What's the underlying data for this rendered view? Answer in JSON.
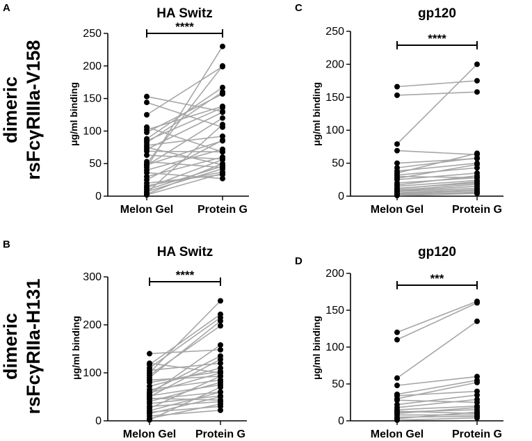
{
  "row_labels": [
    {
      "line1": "dimeric",
      "line2": "rsFcγRIIIa-V158"
    },
    {
      "line1": "dimeric",
      "line2": "rsFcγRIIa-H131"
    }
  ],
  "colors": {
    "line": "#a6a6a6",
    "point": "#000000",
    "axis": "#000000"
  },
  "chart_data": [
    {
      "type": "scatter",
      "panel": "A",
      "title": "HA Switz",
      "ylabel": "μg/ml binding",
      "categories": [
        "Melon Gel",
        "Protein G"
      ],
      "ylim": [
        0,
        250
      ],
      "yticks": [
        0,
        50,
        100,
        150,
        200,
        250
      ],
      "significance": "****",
      "pairs": [
        [
          153,
          130
        ],
        [
          144,
          106
        ],
        [
          125,
          199
        ],
        [
          106,
          68
        ],
        [
          102,
          138
        ],
        [
          98,
          157
        ],
        [
          88,
          167
        ],
        [
          85,
          136
        ],
        [
          82,
          160
        ],
        [
          78,
          92
        ],
        [
          75,
          48
        ],
        [
          72,
          129
        ],
        [
          69,
          68
        ],
        [
          63,
          57
        ],
        [
          53,
          44
        ],
        [
          50,
          200
        ],
        [
          48,
          85
        ],
        [
          47,
          120
        ],
        [
          44,
          230
        ],
        [
          40,
          72
        ],
        [
          36,
          27
        ],
        [
          30,
          60
        ],
        [
          25,
          86
        ],
        [
          20,
          33
        ],
        [
          16,
          37
        ],
        [
          13,
          56
        ],
        [
          10,
          46
        ],
        [
          7,
          42
        ],
        [
          5,
          110
        ],
        [
          3,
          50
        ],
        [
          2,
          35
        ]
      ]
    },
    {
      "type": "scatter",
      "panel": "C",
      "title": "gp120",
      "ylabel": "μg/ml binding",
      "categories": [
        "Melon Gel",
        "Protein G"
      ],
      "ylim": [
        0,
        250
      ],
      "yticks": [
        0,
        50,
        100,
        150,
        200,
        250
      ],
      "significance": "****",
      "pairs": [
        [
          166,
          175
        ],
        [
          153,
          158
        ],
        [
          79,
          200
        ],
        [
          69,
          63
        ],
        [
          50,
          57
        ],
        [
          43,
          58
        ],
        [
          38,
          50
        ],
        [
          35,
          65
        ],
        [
          32,
          43
        ],
        [
          30,
          28
        ],
        [
          27,
          48
        ],
        [
          25,
          35
        ],
        [
          20,
          28
        ],
        [
          17,
          31
        ],
        [
          15,
          24
        ],
        [
          12,
          20
        ],
        [
          11,
          22
        ],
        [
          9,
          18
        ],
        [
          8,
          15
        ],
        [
          7,
          12
        ],
        [
          5,
          10
        ],
        [
          4,
          8
        ],
        [
          3,
          5
        ],
        [
          2,
          6
        ],
        [
          1,
          4
        ]
      ]
    },
    {
      "type": "scatter",
      "panel": "B",
      "title": "HA Switz",
      "ylabel": "μg/ml binding",
      "categories": [
        "Melon Gel",
        "Protein G"
      ],
      "ylim": [
        0,
        300
      ],
      "yticks": [
        0,
        100,
        200,
        300
      ],
      "significance": "****",
      "pairs": [
        [
          140,
          148
        ],
        [
          120,
          100
        ],
        [
          117,
          222
        ],
        [
          110,
          215
        ],
        [
          105,
          120
        ],
        [
          100,
          250
        ],
        [
          95,
          198
        ],
        [
          90,
          208
        ],
        [
          85,
          93
        ],
        [
          80,
          103
        ],
        [
          72,
          110
        ],
        [
          65,
          85
        ],
        [
          60,
          135
        ],
        [
          58,
          100
        ],
        [
          55,
          158
        ],
        [
          52,
          75
        ],
        [
          50,
          128
        ],
        [
          47,
          43
        ],
        [
          45,
          60
        ],
        [
          40,
          80
        ],
        [
          36,
          52
        ],
        [
          30,
          40
        ],
        [
          26,
          93
        ],
        [
          21,
          60
        ],
        [
          18,
          30
        ],
        [
          15,
          50
        ],
        [
          10,
          22
        ],
        [
          5,
          35
        ],
        [
          2,
          70
        ]
      ]
    },
    {
      "type": "scatter",
      "panel": "D",
      "title": "gp120",
      "ylabel": "μg/ml binding",
      "categories": [
        "Melon Gel",
        "Protein G"
      ],
      "ylim": [
        0,
        200
      ],
      "yticks": [
        0,
        50,
        100,
        150,
        200
      ],
      "significance": "***",
      "pairs": [
        [
          120,
          162
        ],
        [
          110,
          160
        ],
        [
          58,
          135
        ],
        [
          48,
          60
        ],
        [
          36,
          55
        ],
        [
          34,
          40
        ],
        [
          30,
          52
        ],
        [
          28,
          25
        ],
        [
          22,
          35
        ],
        [
          18,
          29
        ],
        [
          15,
          20
        ],
        [
          13,
          10
        ],
        [
          12,
          15
        ],
        [
          10,
          18
        ],
        [
          8,
          8
        ],
        [
          5,
          6
        ],
        [
          3,
          12
        ],
        [
          1,
          4
        ]
      ]
    }
  ]
}
